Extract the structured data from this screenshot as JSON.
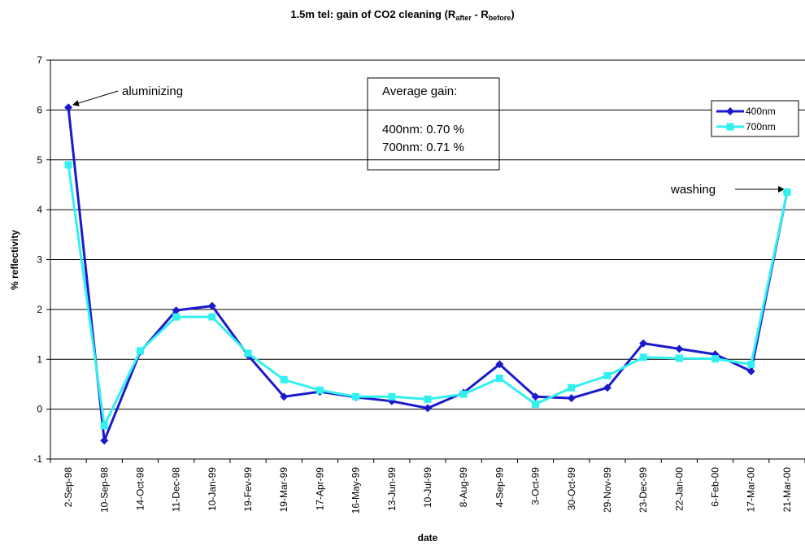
{
  "chart_data": {
    "type": "line",
    "title_parts": [
      "1.5m tel: gain of CO2 cleaning (R",
      "after",
      " - R",
      "before",
      ")"
    ],
    "x_label": "date",
    "y_label": "% reflectivity",
    "categories": [
      "2-Sep-98",
      "10-Sep-98",
      "14-Oct-98",
      "11-Dec-98",
      "10-Jan-99",
      "19-Fev-99",
      "19-Mar-99",
      "17-Apr-99",
      "16-May-99",
      "13-Jun-99",
      "10-Jul-99",
      "8-Aug-99",
      "4-Sep-99",
      "3-Oct-99",
      "30-Oct-99",
      "29-Nov-99",
      "23-Dec-99",
      "22-Jan-00",
      "6-Feb-00",
      "17-Mar-00",
      "21-Mar-00"
    ],
    "series": [
      {
        "name": "400nm",
        "color": "#1a1acc",
        "marker": "diamond",
        "values": [
          6.05,
          -0.63,
          1.15,
          1.98,
          2.07,
          1.08,
          0.25,
          0.35,
          0.24,
          0.16,
          0.02,
          0.33,
          0.9,
          0.25,
          0.22,
          0.43,
          1.32,
          1.21,
          1.1,
          0.76,
          4.35
        ]
      },
      {
        "name": "700nm",
        "color": "#33f0f0",
        "marker": "square",
        "values": [
          4.9,
          -0.33,
          1.17,
          1.85,
          1.85,
          1.12,
          0.59,
          0.38,
          0.25,
          0.25,
          0.2,
          0.3,
          0.62,
          0.1,
          0.43,
          0.67,
          1.04,
          1.02,
          1.01,
          0.9,
          4.35
        ]
      }
    ],
    "ylim": [
      -1,
      7
    ],
    "yticks": [
      -1,
      0,
      1,
      2,
      3,
      4,
      5,
      6,
      7
    ],
    "grid": true,
    "legend": "top-right",
    "annotations": [
      "aluminizing",
      "washing"
    ],
    "text_box": [
      "Average gain:",
      "400nm: 0.70 %",
      "700nm: 0.71 %"
    ]
  }
}
